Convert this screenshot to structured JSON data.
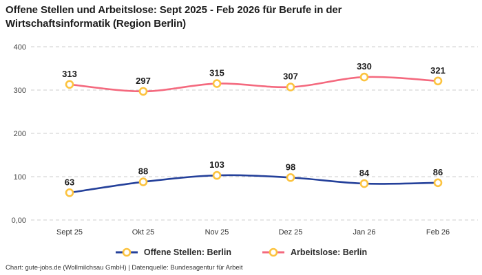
{
  "title": "Offene Stellen und Arbeitslose: Sept 2025 - Feb 2026 für Berufe in der Wirtschaftsinformatik (Region Berlin)",
  "footer": "Chart: gute-jobs.de (Wollmilchsau GmbH) | Datenquelle: Bundesagentur für Arbeit",
  "colors": {
    "series_offene_stellen": "#24409a",
    "series_arbeitslose": "#f4697e",
    "marker_ring": "#fcc33f",
    "marker_fill": "#ffffff",
    "gridline": "#cccccc",
    "tick_text": "#444444",
    "data_label_text": "#1d1d1d",
    "background": "#ffffff"
  },
  "chart_data": {
    "type": "line",
    "categories": [
      "Sept 25",
      "Okt 25",
      "Nov 25",
      "Dez 25",
      "Jan 26",
      "Feb 26"
    ],
    "series": [
      {
        "name": "Offene Stellen: Berlin",
        "values": [
          63,
          88,
          103,
          98,
          84,
          86
        ],
        "color": "#24409a"
      },
      {
        "name": "Arbeitslose: Berlin",
        "values": [
          313,
          297,
          315,
          307,
          330,
          321
        ],
        "color": "#f4697e"
      }
    ],
    "title": "Offene Stellen und Arbeitslose: Sept 2025 - Feb 2026 für Berufe in der Wirtschaftsinformatik (Region Berlin)",
    "xlabel": "",
    "ylabel": "",
    "ylim": [
      0,
      400
    ],
    "yticks": [
      {
        "value": 0,
        "label": "0,00"
      },
      {
        "value": 100,
        "label": "100"
      },
      {
        "value": 200,
        "label": "200"
      },
      {
        "value": 300,
        "label": "300"
      },
      {
        "value": 400,
        "label": "400"
      }
    ],
    "grid": "horizontal-dashed",
    "legend_position": "bottom",
    "marker": "circle-white-fill-yellow-ring",
    "data_labels": "above-points-bold"
  }
}
